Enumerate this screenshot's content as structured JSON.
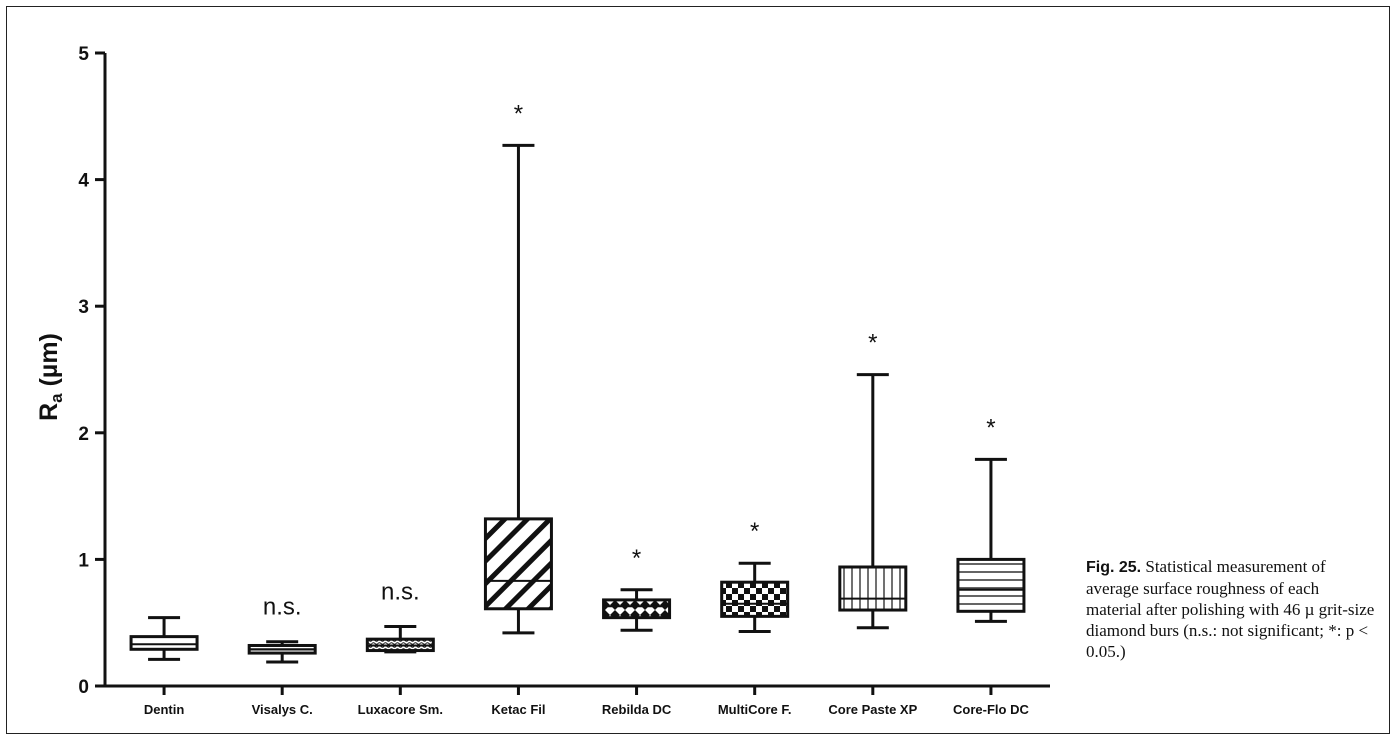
{
  "figure": {
    "caption_label": "Fig. 25.",
    "caption_text": " Statistical measurement of average surface roughness of each material after polishing with 46 µ grit-size diamond burs (n.s.: not significant; *: p < 0.05.)"
  },
  "chart_data": {
    "type": "box",
    "title": "",
    "ylabel_main": "R",
    "ylabel_sub": "a",
    "ylabel_unit": "(µm)",
    "xlabel": "",
    "ylim": [
      0,
      5
    ],
    "yticks": [
      "0",
      "1",
      "2",
      "3",
      "4",
      "5"
    ],
    "grid": false,
    "categories": [
      "Dentin",
      "Visalys C.",
      "Luxacore Sm.",
      "Ketac Fil",
      "Rebilda DC",
      "MultiCore F.",
      "Core Paste XP",
      "Core-Flo DC"
    ],
    "boxes": [
      {
        "whisker_low": 0.21,
        "q1": 0.29,
        "median": 0.33,
        "q3": 0.39,
        "whisker_high": 0.54,
        "annotation": "",
        "pattern": "plain"
      },
      {
        "whisker_low": 0.19,
        "q1": 0.26,
        "median": 0.29,
        "q3": 0.32,
        "whisker_high": 0.35,
        "annotation": "n.s.",
        "pattern": "hlines"
      },
      {
        "whisker_low": 0.27,
        "q1": 0.28,
        "median": 0.32,
        "q3": 0.37,
        "whisker_high": 0.47,
        "annotation": "n.s.",
        "pattern": "wave"
      },
      {
        "whisker_low": 0.42,
        "q1": 0.61,
        "median": 0.83,
        "q3": 1.32,
        "whisker_high": 4.27,
        "annotation": "*",
        "pattern": "diag"
      },
      {
        "whisker_low": 0.44,
        "q1": 0.54,
        "median": 0.63,
        "q3": 0.68,
        "whisker_high": 0.76,
        "annotation": "*",
        "pattern": "diamond"
      },
      {
        "whisker_low": 0.43,
        "q1": 0.55,
        "median": 0.65,
        "q3": 0.82,
        "whisker_high": 0.97,
        "annotation": "*",
        "pattern": "checker"
      },
      {
        "whisker_low": 0.46,
        "q1": 0.6,
        "median": 0.69,
        "q3": 0.94,
        "whisker_high": 2.46,
        "annotation": "*",
        "pattern": "vlines"
      },
      {
        "whisker_low": 0.51,
        "q1": 0.59,
        "median": 0.76,
        "q3": 1.0,
        "whisker_high": 1.79,
        "annotation": "*",
        "pattern": "hlines-wide"
      }
    ]
  }
}
